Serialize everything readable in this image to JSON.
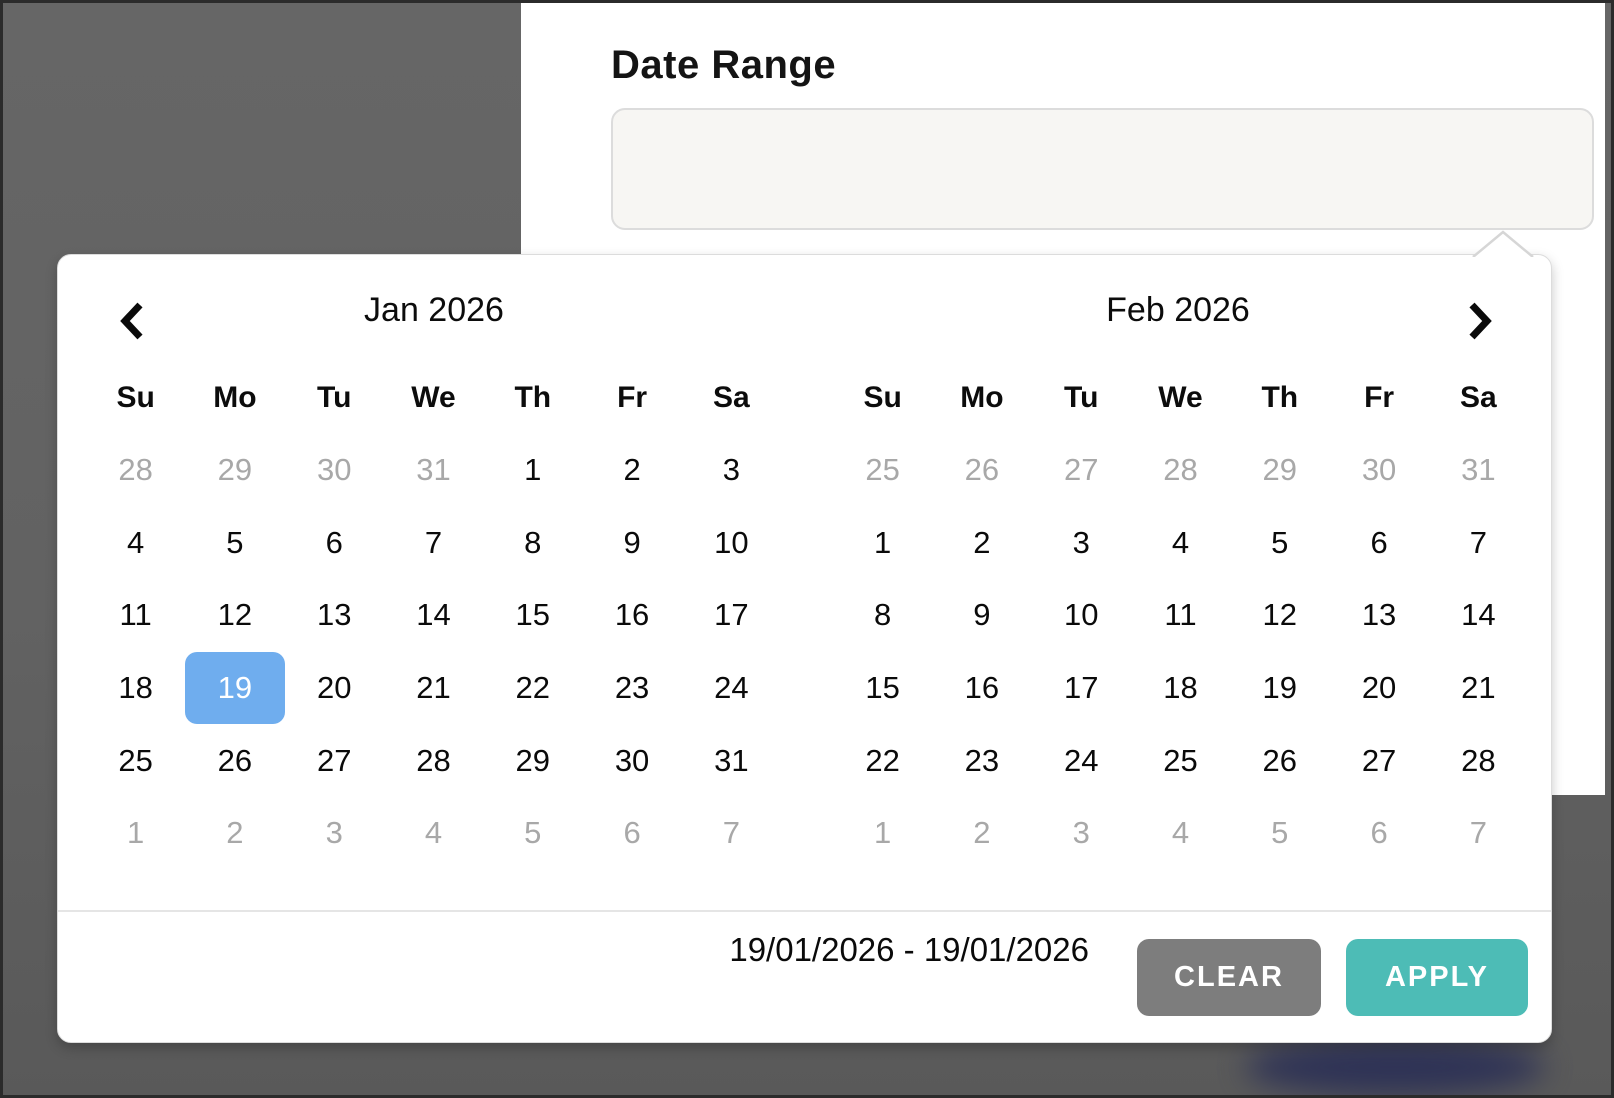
{
  "form": {
    "label": "Date Range",
    "input_value": ""
  },
  "calendar": {
    "months": [
      {
        "title": "Jan 2026",
        "weekdays": [
          "Su",
          "Mo",
          "Tu",
          "We",
          "Th",
          "Fr",
          "Sa"
        ],
        "weeks": [
          [
            {
              "d": 28,
              "out": true
            },
            {
              "d": 29,
              "out": true
            },
            {
              "d": 30,
              "out": true
            },
            {
              "d": 31,
              "out": true
            },
            {
              "d": 1
            },
            {
              "d": 2
            },
            {
              "d": 3
            }
          ],
          [
            {
              "d": 4
            },
            {
              "d": 5
            },
            {
              "d": 6
            },
            {
              "d": 7
            },
            {
              "d": 8
            },
            {
              "d": 9
            },
            {
              "d": 10
            }
          ],
          [
            {
              "d": 11
            },
            {
              "d": 12
            },
            {
              "d": 13
            },
            {
              "d": 14
            },
            {
              "d": 15
            },
            {
              "d": 16
            },
            {
              "d": 17
            }
          ],
          [
            {
              "d": 18
            },
            {
              "d": 19,
              "sel": true
            },
            {
              "d": 20
            },
            {
              "d": 21
            },
            {
              "d": 22
            },
            {
              "d": 23
            },
            {
              "d": 24
            }
          ],
          [
            {
              "d": 25
            },
            {
              "d": 26
            },
            {
              "d": 27
            },
            {
              "d": 28
            },
            {
              "d": 29
            },
            {
              "d": 30
            },
            {
              "d": 31
            }
          ],
          [
            {
              "d": 1,
              "out": true
            },
            {
              "d": 2,
              "out": true
            },
            {
              "d": 3,
              "out": true
            },
            {
              "d": 4,
              "out": true
            },
            {
              "d": 5,
              "out": true
            },
            {
              "d": 6,
              "out": true
            },
            {
              "d": 7,
              "out": true
            }
          ]
        ]
      },
      {
        "title": "Feb 2026",
        "weekdays": [
          "Su",
          "Mo",
          "Tu",
          "We",
          "Th",
          "Fr",
          "Sa"
        ],
        "weeks": [
          [
            {
              "d": 25,
              "out": true
            },
            {
              "d": 26,
              "out": true
            },
            {
              "d": 27,
              "out": true
            },
            {
              "d": 28,
              "out": true
            },
            {
              "d": 29,
              "out": true
            },
            {
              "d": 30,
              "out": true
            },
            {
              "d": 31,
              "out": true
            }
          ],
          [
            {
              "d": 1
            },
            {
              "d": 2
            },
            {
              "d": 3
            },
            {
              "d": 4
            },
            {
              "d": 5
            },
            {
              "d": 6
            },
            {
              "d": 7
            }
          ],
          [
            {
              "d": 8
            },
            {
              "d": 9
            },
            {
              "d": 10
            },
            {
              "d": 11
            },
            {
              "d": 12
            },
            {
              "d": 13
            },
            {
              "d": 14
            }
          ],
          [
            {
              "d": 15
            },
            {
              "d": 16
            },
            {
              "d": 17
            },
            {
              "d": 18
            },
            {
              "d": 19
            },
            {
              "d": 20
            },
            {
              "d": 21
            }
          ],
          [
            {
              "d": 22
            },
            {
              "d": 23
            },
            {
              "d": 24
            },
            {
              "d": 25
            },
            {
              "d": 26
            },
            {
              "d": 27
            },
            {
              "d": 28
            }
          ],
          [
            {
              "d": 1,
              "out": true
            },
            {
              "d": 2,
              "out": true
            },
            {
              "d": 3,
              "out": true
            },
            {
              "d": 4,
              "out": true
            },
            {
              "d": 5,
              "out": true
            },
            {
              "d": 6,
              "out": true
            },
            {
              "d": 7,
              "out": true
            }
          ]
        ]
      }
    ],
    "footer": {
      "range": "19/01/2026 - 19/01/2026",
      "clear": "CLEAR",
      "apply": "APPLY"
    }
  },
  "colors": {
    "selected": "#6fadee",
    "apply": "#4dbcb6",
    "clear": "#7d7d7d",
    "muted": "#a8a8a8"
  }
}
